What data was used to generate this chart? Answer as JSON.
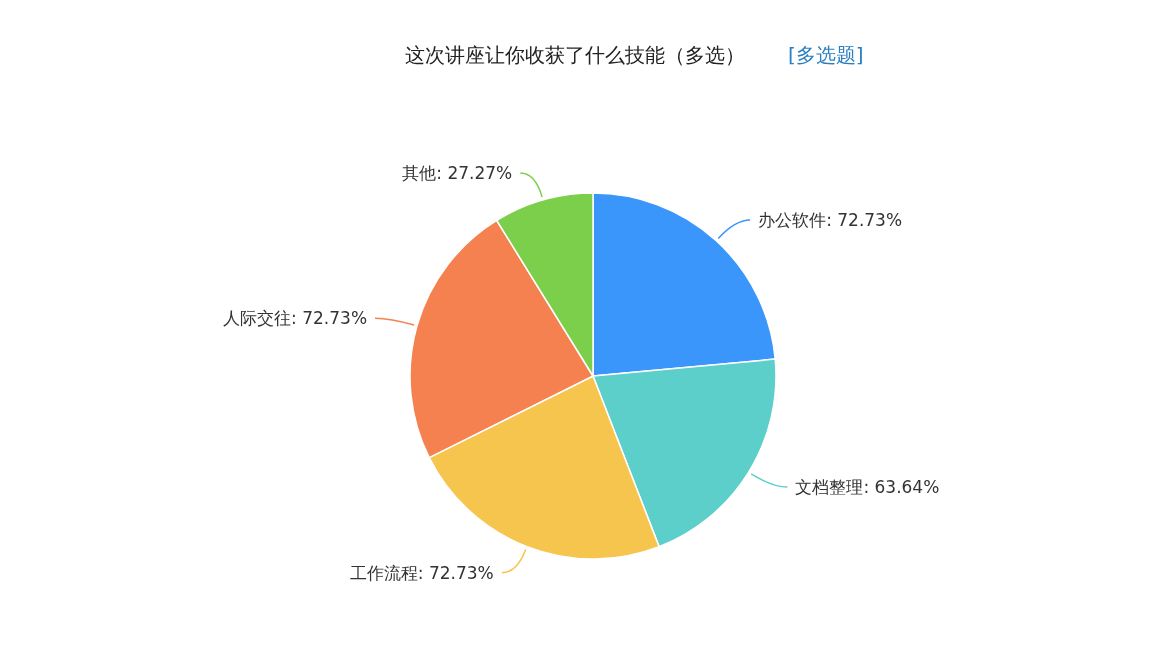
{
  "chart_data": {
    "type": "pie",
    "title": "这次讲座让你收获了什么技能（多选）",
    "subtitle": "[多选题]",
    "categories": [
      "办公软件",
      "文档整理",
      "工作流程",
      "人际交往",
      "其他"
    ],
    "values": [
      72.73,
      63.64,
      72.73,
      72.73,
      27.27
    ],
    "value_labels": [
      "72.73%",
      "63.64%",
      "72.73%",
      "72.73%",
      "27.27%"
    ],
    "colors": [
      "#3a96fb",
      "#5ccfca",
      "#f5c54e",
      "#f58050",
      "#7ccf4a"
    ]
  }
}
